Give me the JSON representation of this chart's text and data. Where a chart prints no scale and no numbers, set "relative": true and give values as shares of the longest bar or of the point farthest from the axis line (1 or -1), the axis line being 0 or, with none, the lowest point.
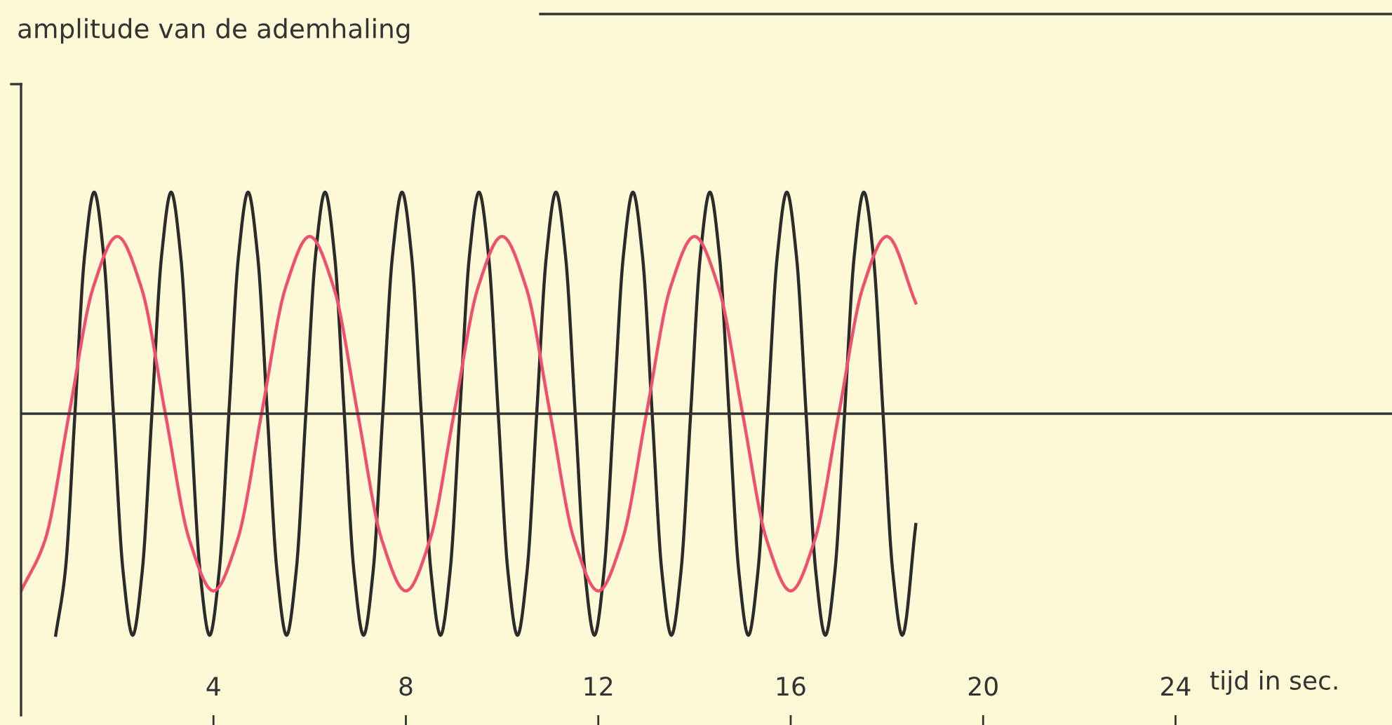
{
  "chart_data": {
    "type": "line",
    "relative": true,
    "annotations": [
      "amplitude van de ademhaling"
    ],
    "xlabel": "tijd in sec.",
    "xlim": [
      0,
      28.5
    ],
    "xticks": [
      4,
      8,
      12,
      16,
      20,
      24
    ],
    "tick_labels": "x",
    "grid": false,
    "legend": false,
    "marker": "none",
    "line_style": "solid",
    "series": [
      {
        "color": "#2b2b2b",
        "x": [
          0.72,
          0.92,
          1.12,
          1.32,
          1.52,
          1.72,
          1.92,
          2.12,
          2.32,
          2.52,
          2.72,
          2.92,
          3.12,
          3.32,
          3.52,
          3.72,
          3.92,
          4.12,
          4.32,
          4.52,
          4.72,
          4.92,
          5.12,
          5.32,
          5.52,
          5.72,
          5.92,
          6.12,
          6.32,
          6.52,
          6.72,
          6.92,
          7.12,
          7.32,
          7.52,
          7.72,
          7.92,
          8.12,
          8.32,
          8.52,
          8.72,
          8.92,
          9.12,
          9.32,
          9.52,
          9.72,
          9.92,
          10.12,
          10.32,
          10.52,
          10.72,
          10.92,
          11.12,
          11.32,
          11.52,
          11.72,
          11.92,
          12.12,
          12.32,
          12.52,
          12.72,
          12.92,
          13.12,
          13.32,
          13.52,
          13.72,
          13.92,
          14.12,
          14.32,
          14.52,
          14.72,
          14.92,
          15.12,
          15.32,
          15.52,
          15.72,
          15.92,
          16.12,
          16.32,
          16.52,
          16.72,
          16.92,
          17.12,
          17.32,
          17.52,
          17.72,
          17.92,
          18.12,
          18.32,
          18.6
        ],
        "values": [
          -1,
          -0.71,
          0,
          0.71,
          1,
          0.71,
          0,
          -0.71,
          -1,
          -0.71,
          0,
          0.71,
          1,
          0.71,
          0,
          -0.71,
          -1,
          -0.71,
          0,
          0.71,
          1,
          0.71,
          0,
          -0.71,
          -1,
          -0.71,
          0,
          0.71,
          1,
          0.71,
          0,
          -0.71,
          -1,
          -0.71,
          0,
          0.71,
          1,
          0.71,
          0,
          -0.71,
          -1,
          -0.71,
          0,
          0.71,
          1,
          0.71,
          0,
          -0.71,
          -1,
          -0.71,
          0,
          0.71,
          1,
          0.71,
          0,
          -0.71,
          -1,
          -0.71,
          0,
          0.71,
          1,
          0.71,
          0,
          -0.71,
          -1,
          -0.71,
          0,
          0.71,
          1,
          0.71,
          0,
          -0.71,
          -1,
          -0.71,
          0,
          0.71,
          1,
          0.71,
          0,
          -0.71,
          -1,
          -0.71,
          0,
          0.71,
          1,
          0.71,
          0,
          -0.71,
          -1,
          -0.5
        ]
      },
      {
        "color": "#f0506e",
        "x": [
          0,
          0.5,
          1,
          1.5,
          2,
          2.5,
          3,
          3.5,
          4,
          4.5,
          5,
          5.5,
          6,
          6.5,
          7,
          7.5,
          8,
          8.5,
          9,
          9.5,
          10,
          10.5,
          11,
          11.5,
          12,
          12.5,
          13,
          13.5,
          14,
          14.5,
          15,
          15.5,
          16,
          16.5,
          17,
          17.5,
          18,
          18.6
        ],
        "values": [
          -0.8,
          -0.57,
          0,
          0.57,
          0.8,
          0.57,
          0,
          -0.57,
          -0.8,
          -0.57,
          0,
          0.57,
          0.8,
          0.57,
          0,
          -0.57,
          -0.8,
          -0.57,
          0,
          0.57,
          0.8,
          0.57,
          0,
          -0.57,
          -0.8,
          -0.57,
          0,
          0.57,
          0.8,
          0.57,
          0,
          -0.57,
          -0.8,
          -0.57,
          0,
          0.57,
          0.8,
          0.5
        ]
      }
    ]
  }
}
